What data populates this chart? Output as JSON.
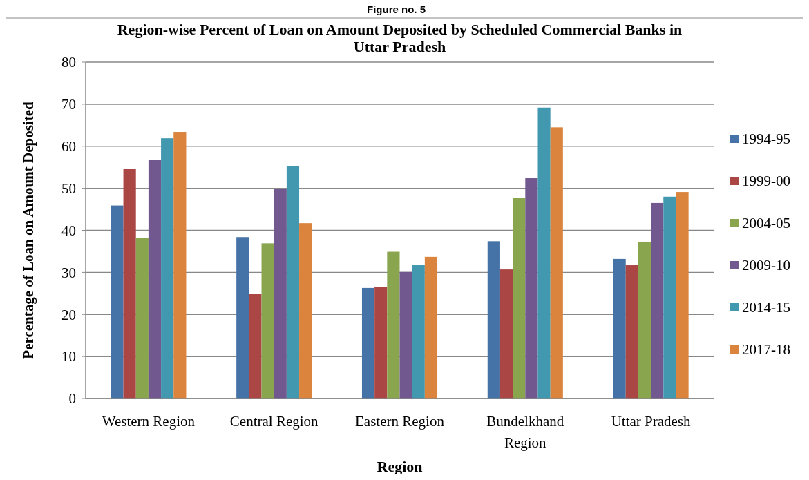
{
  "chart_data": {
    "type": "bar",
    "title": "Region-wise Percent of Loan on Amount Deposited by Scheduled Commercial Banks in Uttar Pradesh",
    "xlabel": "Region",
    "ylabel": "Percentage of Loan on Amount Deposited",
    "annotations": [
      "Figure no. 5"
    ],
    "categories": [
      "Western Region",
      "Central Region",
      "Eastern Region",
      "Bundelkhand Region",
      "Uttar Pradesh"
    ],
    "series": [
      {
        "name": "1994-95",
        "color": "#4572a7",
        "values": [
          45.9,
          38.4,
          26.3,
          37.4,
          33.2
        ]
      },
      {
        "name": "1999-00",
        "color": "#aa4643",
        "values": [
          54.7,
          24.9,
          26.6,
          30.7,
          31.7
        ]
      },
      {
        "name": "2004-05",
        "color": "#89a54e",
        "values": [
          38.2,
          36.9,
          34.9,
          47.7,
          37.3
        ]
      },
      {
        "name": "2009-10",
        "color": "#71588f",
        "values": [
          56.8,
          49.9,
          30.1,
          52.4,
          46.5
        ]
      },
      {
        "name": "2014-15",
        "color": "#4198af",
        "values": [
          61.9,
          55.2,
          31.7,
          69.2,
          48.0
        ]
      },
      {
        "name": "2017-18",
        "color": "#db843d",
        "values": [
          63.4,
          41.7,
          33.7,
          64.5,
          49.1
        ]
      }
    ],
    "ylim": [
      0,
      80
    ],
    "yticks": [
      0,
      10,
      20,
      30,
      40,
      50,
      60,
      70,
      80
    ],
    "grid": "y",
    "legend": "right"
  }
}
